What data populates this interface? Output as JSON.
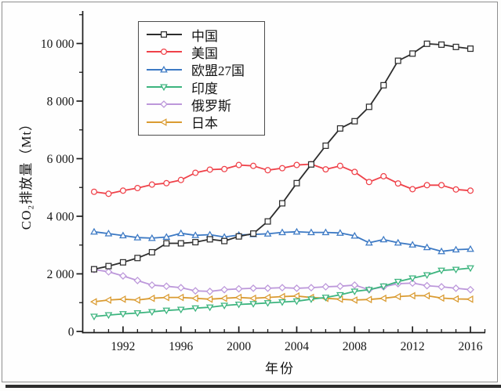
{
  "figure": {
    "background": "#fdfdfc",
    "frame_border_color": "#8f8f8f",
    "bottom_rule_color": "#2e2e2e",
    "axis_color": "#1c1c1c",
    "text_color": "#141414"
  },
  "chart_data": {
    "type": "line",
    "title": "",
    "xlabel": "年份",
    "ylabel": "CO₂排放量（Mt）",
    "grid": false,
    "legend_position": "upper-left-inside",
    "xlim": [
      1989.2,
      2017.1
    ],
    "ylim": [
      0,
      11150
    ],
    "x_ticks": [
      1992,
      1996,
      2000,
      2004,
      2008,
      2012,
      2016
    ],
    "x_tick_labels": [
      "1992",
      "1996",
      "2000",
      "2004",
      "2008",
      "2012",
      "2016"
    ],
    "x_minor_ticks_every_year": true,
    "y_ticks": [
      0,
      2000,
      4000,
      6000,
      8000,
      10000
    ],
    "y_tick_labels": [
      "0",
      "2 000",
      "4 000",
      "6 000",
      "8 000",
      "10 000"
    ],
    "y_minor_ticks": [
      1000,
      3000,
      5000,
      7000,
      9000,
      11000
    ],
    "x": [
      1990,
      1991,
      1992,
      1993,
      1994,
      1995,
      1996,
      1997,
      1998,
      1999,
      2000,
      2001,
      2002,
      2003,
      2004,
      2005,
      2006,
      2007,
      2008,
      2009,
      2010,
      2011,
      2012,
      2013,
      2014,
      2015,
      2016
    ],
    "series": [
      {
        "key": "china",
        "name": "中国",
        "color": "#2d2d2d",
        "marker": "square",
        "values": [
          2160,
          2270,
          2400,
          2550,
          2750,
          3060,
          3060,
          3100,
          3200,
          3140,
          3300,
          3400,
          3820,
          4450,
          5150,
          5800,
          6450,
          7050,
          7300,
          7800,
          8550,
          9400,
          9650,
          9990,
          9960,
          9880,
          9820
        ]
      },
      {
        "key": "usa",
        "name": "美国",
        "color": "#ef4149",
        "marker": "circle",
        "values": [
          4850,
          4780,
          4890,
          4980,
          5100,
          5150,
          5260,
          5510,
          5620,
          5640,
          5780,
          5750,
          5600,
          5670,
          5780,
          5810,
          5630,
          5750,
          5540,
          5190,
          5390,
          5140,
          4940,
          5080,
          5080,
          4930,
          4890
        ]
      },
      {
        "key": "eu27",
        "name": "欧盟27国",
        "color": "#3c79c4",
        "marker": "triangle-up",
        "values": [
          3460,
          3400,
          3330,
          3260,
          3240,
          3280,
          3410,
          3340,
          3360,
          3280,
          3350,
          3370,
          3390,
          3440,
          3460,
          3440,
          3440,
          3420,
          3320,
          3080,
          3190,
          3080,
          3010,
          2920,
          2780,
          2840,
          2860
        ]
      },
      {
        "key": "india",
        "name": "印度",
        "color": "#3cb47e",
        "marker": "triangle-down",
        "values": [
          520,
          570,
          610,
          640,
          680,
          730,
          760,
          810,
          840,
          900,
          940,
          960,
          990,
          1020,
          1050,
          1120,
          1180,
          1270,
          1390,
          1450,
          1570,
          1730,
          1850,
          1960,
          2120,
          2150,
          2200
        ]
      },
      {
        "key": "russia",
        "name": "俄罗斯",
        "color": "#bc97da",
        "marker": "diamond",
        "values": [
          2150,
          2070,
          1930,
          1770,
          1610,
          1570,
          1520,
          1410,
          1390,
          1450,
          1480,
          1500,
          1500,
          1520,
          1500,
          1520,
          1550,
          1570,
          1610,
          1450,
          1550,
          1660,
          1680,
          1590,
          1550,
          1500,
          1450
        ]
      },
      {
        "key": "japan",
        "name": "日本",
        "color": "#da9b31",
        "marker": "triangle-left",
        "values": [
          1030,
          1090,
          1120,
          1090,
          1150,
          1180,
          1180,
          1150,
          1120,
          1150,
          1180,
          1150,
          1180,
          1210,
          1230,
          1180,
          1150,
          1120,
          1090,
          1110,
          1150,
          1210,
          1240,
          1240,
          1160,
          1130,
          1120
        ]
      }
    ]
  }
}
